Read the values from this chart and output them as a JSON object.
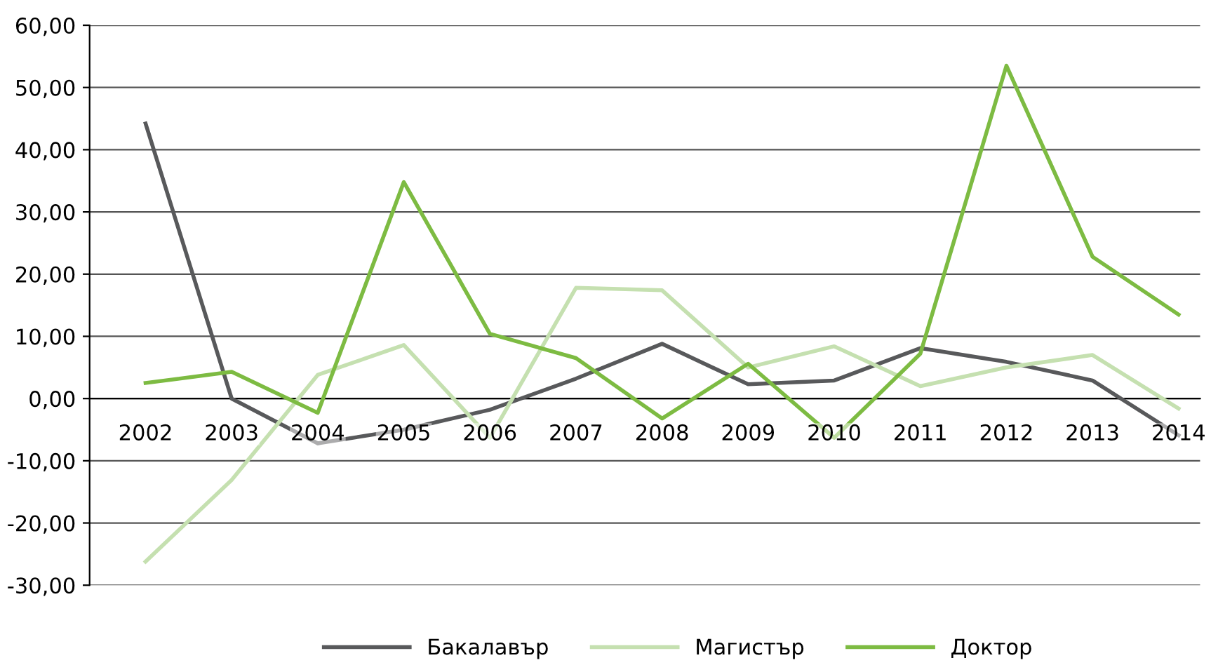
{
  "chart_data": {
    "type": "line",
    "categories": [
      "2002",
      "2003",
      "2004",
      "2005",
      "2006",
      "2007",
      "2008",
      "2009",
      "2010",
      "2011",
      "2012",
      "2013",
      "2014"
    ],
    "series": [
      {
        "name": "Бакалавър",
        "color": "#58595b",
        "values": [
          44.2,
          0,
          -7.2,
          -5,
          -1.8,
          3.2,
          8.8,
          2.3,
          2.9,
          8.1,
          5.9,
          2.9,
          -5.9
        ]
      },
      {
        "name": "Магистър",
        "color": "#c5e0b0",
        "values": [
          -26.2,
          -13.1,
          3.8,
          8.6,
          -6.3,
          17.8,
          17.4,
          5.0,
          8.4,
          2.0,
          5.0,
          7.0,
          -1.6
        ]
      },
      {
        "name": "Доктор",
        "color": "#7dbb42",
        "values": [
          2.5,
          4.3,
          -2.3,
          34.8,
          10.4,
          6.5,
          -3.2,
          5.6,
          -6.3,
          7.2,
          53.5,
          22.8,
          13.5
        ]
      }
    ],
    "ylim": [
      -30,
      60
    ],
    "yticks": [
      {
        "value": -30,
        "label": "-30,00"
      },
      {
        "value": -20,
        "label": "-20,00"
      },
      {
        "value": -10,
        "label": "-10,00"
      },
      {
        "value": 0,
        "label": "0,00"
      },
      {
        "value": 10,
        "label": "10,00"
      },
      {
        "value": 20,
        "label": "20,00"
      },
      {
        "value": 30,
        "label": "30,00"
      },
      {
        "value": 40,
        "label": "40,00"
      },
      {
        "value": 50,
        "label": "50,00"
      },
      {
        "value": 60,
        "label": "60,00"
      }
    ],
    "grid": "y",
    "legend": "bottom",
    "marker": "none",
    "line_style": "solid"
  }
}
